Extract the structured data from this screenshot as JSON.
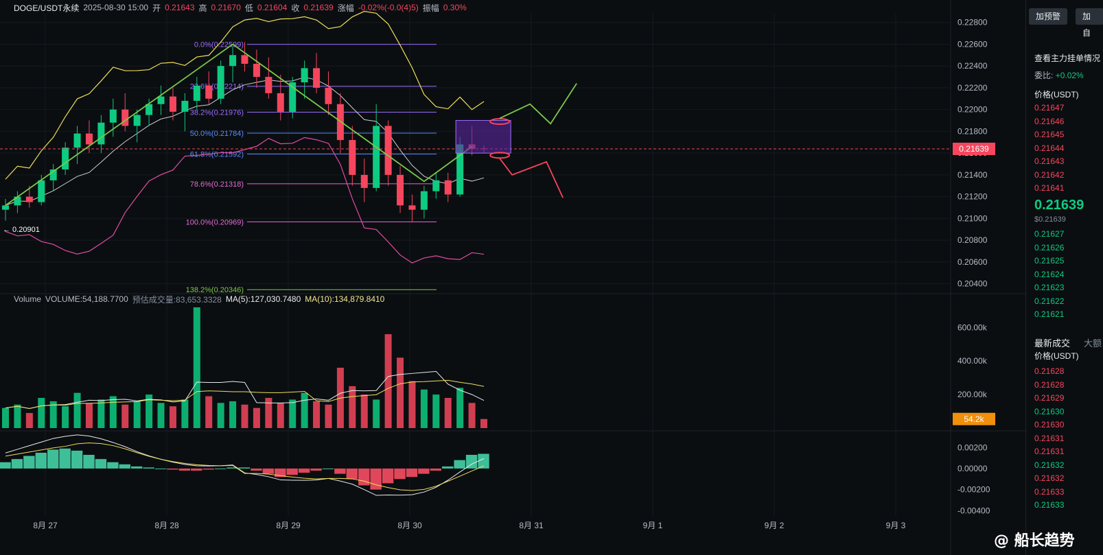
{
  "header": {
    "symbol": "DOGE/USDT永续",
    "datetime": "2025-08-30 15:00",
    "open_label": "开",
    "open": "0.21643",
    "high_label": "高",
    "high": "0.21670",
    "low_label": "低",
    "low": "0.21604",
    "close_label": "收",
    "close": "0.21639",
    "change_label": "涨幅",
    "change": "-0.02%(-0.0(4)5)",
    "amplitude_label": "振幅",
    "amplitude": "0.30%"
  },
  "volume_header": {
    "label": "Volume",
    "volume": "VOLUME:54,188.7700",
    "est": "预估成交量:83,653.3328",
    "ma5": "MA(5):127,030.7480",
    "ma10": "MA(10):134,879.8410"
  },
  "sidebar": {
    "alert_button": "加预警",
    "second_button": "加自",
    "depth_title": "查看主力挂单情况",
    "ratio_label": "委比:",
    "ratio_value": "+0.02%",
    "price_header": "价格(USDT)",
    "asks": [
      "0.21647",
      "0.21646",
      "0.21645",
      "0.21644",
      "0.21643",
      "0.21642",
      "0.21641"
    ],
    "last_price": "0.21639",
    "last_price_usd": "$0.21639",
    "bids": [
      "0.21627",
      "0.21626",
      "0.21625",
      "0.21624",
      "0.21623",
      "0.21622",
      "0.21621"
    ],
    "trades_tab": "最新成交",
    "big_tab": "大额",
    "trades_header": "价格(USDT)",
    "trades": [
      {
        "p": "0.21628",
        "c": "red"
      },
      {
        "p": "0.21628",
        "c": "red"
      },
      {
        "p": "0.21629",
        "c": "red"
      },
      {
        "p": "0.21630",
        "c": "green"
      },
      {
        "p": "0.21630",
        "c": "red"
      },
      {
        "p": "0.21631",
        "c": "red"
      },
      {
        "p": "0.21631",
        "c": "red"
      },
      {
        "p": "0.21632",
        "c": "green"
      },
      {
        "p": "0.21632",
        "c": "red"
      },
      {
        "p": "0.21633",
        "c": "red"
      },
      {
        "p": "0.21633",
        "c": "green"
      }
    ]
  },
  "watermark": "@ 船长趋势",
  "colors": {
    "up": "#0ecb81",
    "down": "#f6465d",
    "bg": "#0b0e11",
    "accent": "#f0b90b"
  },
  "chart_data": {
    "type": "candlestick",
    "y_axis_ticks": [
      "0.22800",
      "0.22600",
      "0.22400",
      "0.22200",
      "0.22000",
      "0.21800",
      "0.21600",
      "0.21400",
      "0.21200",
      "0.21000",
      "0.20800",
      "0.20600",
      "0.20400"
    ],
    "ylim": [
      0.2036,
      0.2288
    ],
    "last_price": 0.21639,
    "last_price_label": "0.21639",
    "low_marker": "← 0.20901",
    "x_ticks": [
      "8月 27",
      "8月 28",
      "8月 29",
      "8月 30",
      "8月 31",
      "9月 1",
      "9月 2",
      "9月 3"
    ],
    "fibonacci": [
      {
        "ratio": "0.0%",
        "price": 0.22599,
        "label": "0.0%(0.22599)",
        "color": "#9c6cff"
      },
      {
        "ratio": "23.6%",
        "price": 0.22214,
        "label": "23.6%(0.22214)",
        "color": "#9c6cff"
      },
      {
        "ratio": "38.2%",
        "price": 0.21976,
        "label": "38.2%(0.21976)",
        "color": "#9c6cff"
      },
      {
        "ratio": "50.0%",
        "price": 0.21784,
        "label": "50.0%(0.21784)",
        "color": "#5b8cff"
      },
      {
        "ratio": "61.8%",
        "price": 0.21592,
        "label": "61.8%(0.21592)",
        "color": "#5b8cff"
      },
      {
        "ratio": "78.6%",
        "price": 0.21318,
        "label": "78.6%(0.21318)",
        "color": "#e36bd2"
      },
      {
        "ratio": "100.0%",
        "price": 0.20969,
        "label": "100.0%(0.20969)",
        "color": "#e36bd2"
      },
      {
        "ratio": "138.2%",
        "price": 0.20346,
        "label": "138.2%(0.20346)",
        "color": "#7cc949"
      }
    ],
    "candles_ohlc_approx": [
      [
        0.2108,
        0.2118,
        0.2098,
        0.2112
      ],
      [
        0.2112,
        0.2125,
        0.2105,
        0.212
      ],
      [
        0.212,
        0.213,
        0.211,
        0.2115
      ],
      [
        0.2115,
        0.214,
        0.2112,
        0.2135
      ],
      [
        0.2135,
        0.215,
        0.2125,
        0.2145
      ],
      [
        0.2145,
        0.217,
        0.214,
        0.2165
      ],
      [
        0.2165,
        0.2185,
        0.215,
        0.2178
      ],
      [
        0.2178,
        0.219,
        0.216,
        0.2168
      ],
      [
        0.2168,
        0.2195,
        0.216,
        0.2188
      ],
      [
        0.2188,
        0.221,
        0.2175,
        0.22
      ],
      [
        0.22,
        0.2215,
        0.218,
        0.2185
      ],
      [
        0.2185,
        0.22,
        0.217,
        0.2195
      ],
      [
        0.2195,
        0.221,
        0.2185,
        0.2205
      ],
      [
        0.2205,
        0.2222,
        0.2195,
        0.2212
      ],
      [
        0.2212,
        0.222,
        0.219,
        0.2198
      ],
      [
        0.2198,
        0.2215,
        0.218,
        0.2208
      ],
      [
        0.2208,
        0.223,
        0.22,
        0.2222
      ],
      [
        0.2222,
        0.2235,
        0.2205,
        0.221
      ],
      [
        0.221,
        0.2245,
        0.2205,
        0.224
      ],
      [
        0.224,
        0.2258,
        0.2225,
        0.225
      ],
      [
        0.225,
        0.2262,
        0.2235,
        0.2242
      ],
      [
        0.2242,
        0.2255,
        0.222,
        0.223
      ],
      [
        0.223,
        0.2248,
        0.221,
        0.2215
      ],
      [
        0.2215,
        0.2232,
        0.219,
        0.2198
      ],
      [
        0.2198,
        0.223,
        0.2192,
        0.2225
      ],
      [
        0.2225,
        0.2245,
        0.221,
        0.2238
      ],
      [
        0.2238,
        0.2252,
        0.2215,
        0.222
      ],
      [
        0.222,
        0.2235,
        0.2195,
        0.2205
      ],
      [
        0.2205,
        0.2215,
        0.216,
        0.2172
      ],
      [
        0.2172,
        0.2185,
        0.213,
        0.214
      ],
      [
        0.214,
        0.2155,
        0.2115,
        0.2128
      ],
      [
        0.2128,
        0.2205,
        0.2125,
        0.2185
      ],
      [
        0.2185,
        0.219,
        0.213,
        0.214
      ],
      [
        0.214,
        0.2148,
        0.2105,
        0.2112
      ],
      [
        0.2112,
        0.2122,
        0.2097,
        0.2108
      ],
      [
        0.2108,
        0.213,
        0.21,
        0.2125
      ],
      [
        0.2125,
        0.2142,
        0.2118,
        0.2135
      ],
      [
        0.2135,
        0.2142,
        0.2115,
        0.2122
      ],
      [
        0.2122,
        0.2175,
        0.212,
        0.2168
      ],
      [
        0.2168,
        0.2185,
        0.2158,
        0.2164
      ],
      [
        0.21643,
        0.2167,
        0.21604,
        0.21639
      ]
    ],
    "volume_axis_ticks": [
      "600.00k",
      "400.00k",
      "200.00k"
    ],
    "volume_last_label": "54.2k",
    "volume_ylim": [
      0,
      720000
    ],
    "volumes_approx": [
      120000,
      140000,
      90000,
      180000,
      160000,
      130000,
      210000,
      150000,
      170000,
      190000,
      140000,
      160000,
      200000,
      150000,
      130000,
      170000,
      720000,
      190000,
      150000,
      160000,
      140000,
      120000,
      180000,
      150000,
      170000,
      210000,
      160000,
      140000,
      360000,
      250000,
      200000,
      170000,
      560000,
      420000,
      280000,
      230000,
      200000,
      180000,
      240000,
      150000,
      54200
    ],
    "macd_axis_ticks": [
      "0.00200",
      "0.00000",
      "-0.00200",
      "-0.00400"
    ],
    "macd_ylim": [
      -0.0045,
      0.0028
    ],
    "macd_hist_approx": [
      0.0006,
      0.0009,
      0.0012,
      0.0015,
      0.0018,
      0.0019,
      0.0017,
      0.0013,
      0.0009,
      0.0006,
      0.0004,
      0.0002,
      0.0001,
      0.0,
      -0.0001,
      -0.0002,
      -0.0002,
      -0.0001,
      0.0,
      0.0001,
      0.0001,
      -0.0002,
      -0.0005,
      -0.0008,
      -0.0006,
      -0.0004,
      -0.0002,
      0.0,
      -0.0005,
      -0.001,
      -0.0016,
      -0.002,
      -0.0014,
      -0.001,
      -0.0008,
      -0.0005,
      -0.0002,
      0.0002,
      0.0008,
      0.0013,
      0.0014
    ]
  }
}
